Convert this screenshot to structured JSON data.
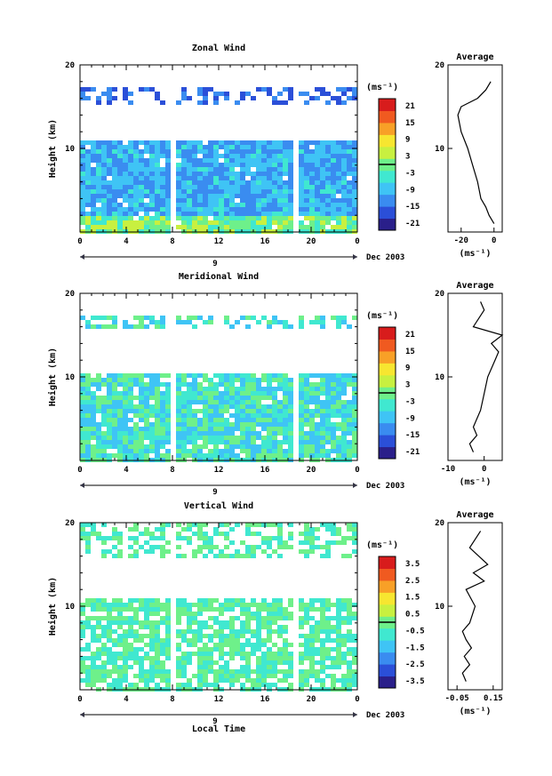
{
  "date_label": "Dec 2003",
  "xlabel_bottom": "Local Time",
  "panels": [
    {
      "title": "Zonal Wind",
      "ylabel": "Height (km)",
      "yticks": [
        "20",
        "10"
      ],
      "xticks": [
        "0",
        "4",
        "8",
        "12",
        "16",
        "20",
        "0"
      ],
      "day_label": "9",
      "cbar_unit": "(ms⁻¹)",
      "cbar_ticks": [
        "21",
        "15",
        "9",
        "3",
        "-3",
        "-9",
        "-15",
        "-21"
      ],
      "avg_title": "Average",
      "avg_xticks": [
        "-20",
        "0"
      ],
      "avg_yticks": [
        "20",
        "10"
      ],
      "avg_xlabel": "(ms⁻¹)"
    },
    {
      "title": "Meridional Wind",
      "ylabel": "Height (km)",
      "yticks": [
        "20",
        "10"
      ],
      "xticks": [
        "0",
        "4",
        "8",
        "12",
        "16",
        "20",
        "0"
      ],
      "day_label": "9",
      "cbar_unit": "(ms⁻¹)",
      "cbar_ticks": [
        "21",
        "15",
        "9",
        "3",
        "-3",
        "-9",
        "-15",
        "-21"
      ],
      "avg_title": "Average",
      "avg_xticks": [
        "-10",
        "0"
      ],
      "avg_yticks": [
        "20",
        "10"
      ],
      "avg_xlabel": "(ms⁻¹)"
    },
    {
      "title": "Vertical Wind",
      "ylabel": "Height (km)",
      "yticks": [
        "20",
        "10"
      ],
      "xticks": [
        "0",
        "4",
        "8",
        "12",
        "16",
        "20",
        "0"
      ],
      "day_label": "9",
      "cbar_unit": "(ms⁻¹)",
      "cbar_ticks": [
        "3.5",
        "2.5",
        "1.5",
        "0.5",
        "-0.5",
        "-1.5",
        "-2.5",
        "-3.5"
      ],
      "avg_title": "Average",
      "avg_xticks": [
        "-0.05",
        "0.15"
      ],
      "avg_yticks": [
        "20",
        "10"
      ],
      "avg_xlabel": "(ms⁻¹)"
    }
  ],
  "colorbar_colors": [
    "#2a1f8a",
    "#2b4fd8",
    "#3a8cf0",
    "#3fc4f5",
    "#40e8d0",
    "#6ef08a",
    "#c8f040",
    "#f7e630",
    "#f8a027",
    "#f05a20",
    "#d81c1c"
  ],
  "chart_data": [
    {
      "type": "heatmap",
      "title": "Zonal Wind",
      "xlabel": "",
      "ylabel": "Height (km)",
      "xlim": [
        0,
        24
      ],
      "ylim": [
        0,
        20
      ],
      "color_range": [
        -21,
        21
      ],
      "avg_profile": {
        "x": [
          0,
          -3,
          -5,
          -8,
          -10,
          -13,
          -16,
          -18,
          -20,
          -22,
          -20,
          -10,
          -5,
          -2
        ],
        "y": [
          1,
          2,
          3,
          4,
          6,
          8,
          10,
          11,
          12,
          14,
          15,
          16,
          17,
          18
        ],
        "xlim": [
          -28,
          5
        ]
      }
    },
    {
      "type": "heatmap",
      "title": "Meridional Wind",
      "xlabel": "",
      "ylabel": "Height (km)",
      "xlim": [
        0,
        24
      ],
      "ylim": [
        0,
        20
      ],
      "color_range": [
        -21,
        21
      ],
      "avg_profile": {
        "x": [
          -3,
          -4,
          -2,
          -3,
          -1,
          0,
          1,
          2,
          3,
          4,
          2,
          5,
          -3,
          0,
          -1
        ],
        "y": [
          1,
          2,
          3,
          4,
          6,
          8,
          10,
          11,
          12,
          13,
          14,
          15,
          16,
          18,
          19
        ],
        "xlim": [
          -10,
          5
        ]
      }
    },
    {
      "type": "heatmap",
      "title": "Vertical Wind",
      "xlabel": "Local Time",
      "ylabel": "Height (km)",
      "xlim": [
        0,
        24
      ],
      "ylim": [
        0,
        20
      ],
      "color_range": [
        -3.5,
        3.5
      ],
      "avg_profile": {
        "x": [
          0.0,
          -0.02,
          0.02,
          -0.01,
          0.03,
          0.0,
          -0.02,
          0.02,
          0.05,
          0.0,
          0.1,
          0.04,
          0.12,
          0.02,
          0.08
        ],
        "y": [
          1,
          2,
          3,
          4,
          5,
          6,
          7,
          8,
          10,
          12,
          13,
          14,
          15,
          17,
          19
        ],
        "xlim": [
          -0.1,
          0.2
        ]
      }
    }
  ]
}
